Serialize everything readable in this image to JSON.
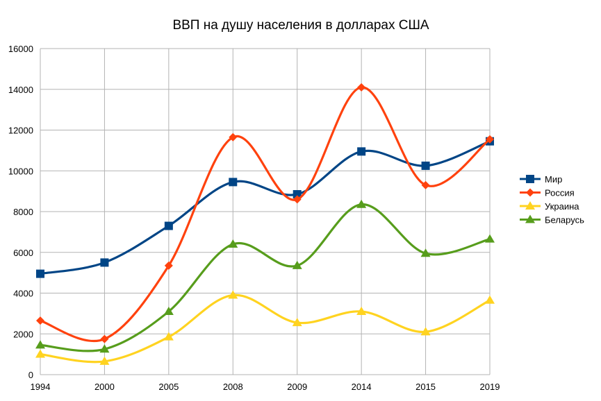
{
  "chart_data": {
    "type": "line",
    "title": "ВВП на душу населения в долларах США",
    "categories": [
      "1994",
      "2000",
      "2005",
      "2008",
      "2009",
      "2014",
      "2015",
      "2019"
    ],
    "ylim": [
      0,
      16000
    ],
    "yticks": [
      "0",
      "2000",
      "4000",
      "6000",
      "8000",
      "10000",
      "12000",
      "14000",
      "16000"
    ],
    "grid": true,
    "smooth": true,
    "legend_position": "right",
    "series": [
      {
        "name": "Мир",
        "color": "#004586",
        "marker": "square",
        "values": [
          4950,
          5500,
          7300,
          9450,
          8850,
          10950,
          10250,
          11450
        ]
      },
      {
        "name": "Россия",
        "color": "#ff420e",
        "marker": "diamond",
        "values": [
          2650,
          1750,
          5350,
          11650,
          8600,
          14100,
          9300,
          11550
        ]
      },
      {
        "name": "Украина",
        "color": "#ffd320",
        "marker": "triangle",
        "values": [
          1000,
          650,
          1850,
          3900,
          2550,
          3100,
          2100,
          3650
        ]
      },
      {
        "name": "Беларусь",
        "color": "#579d1c",
        "marker": "triangle",
        "values": [
          1450,
          1250,
          3100,
          6400,
          5350,
          8350,
          5950,
          6650
        ]
      }
    ]
  }
}
